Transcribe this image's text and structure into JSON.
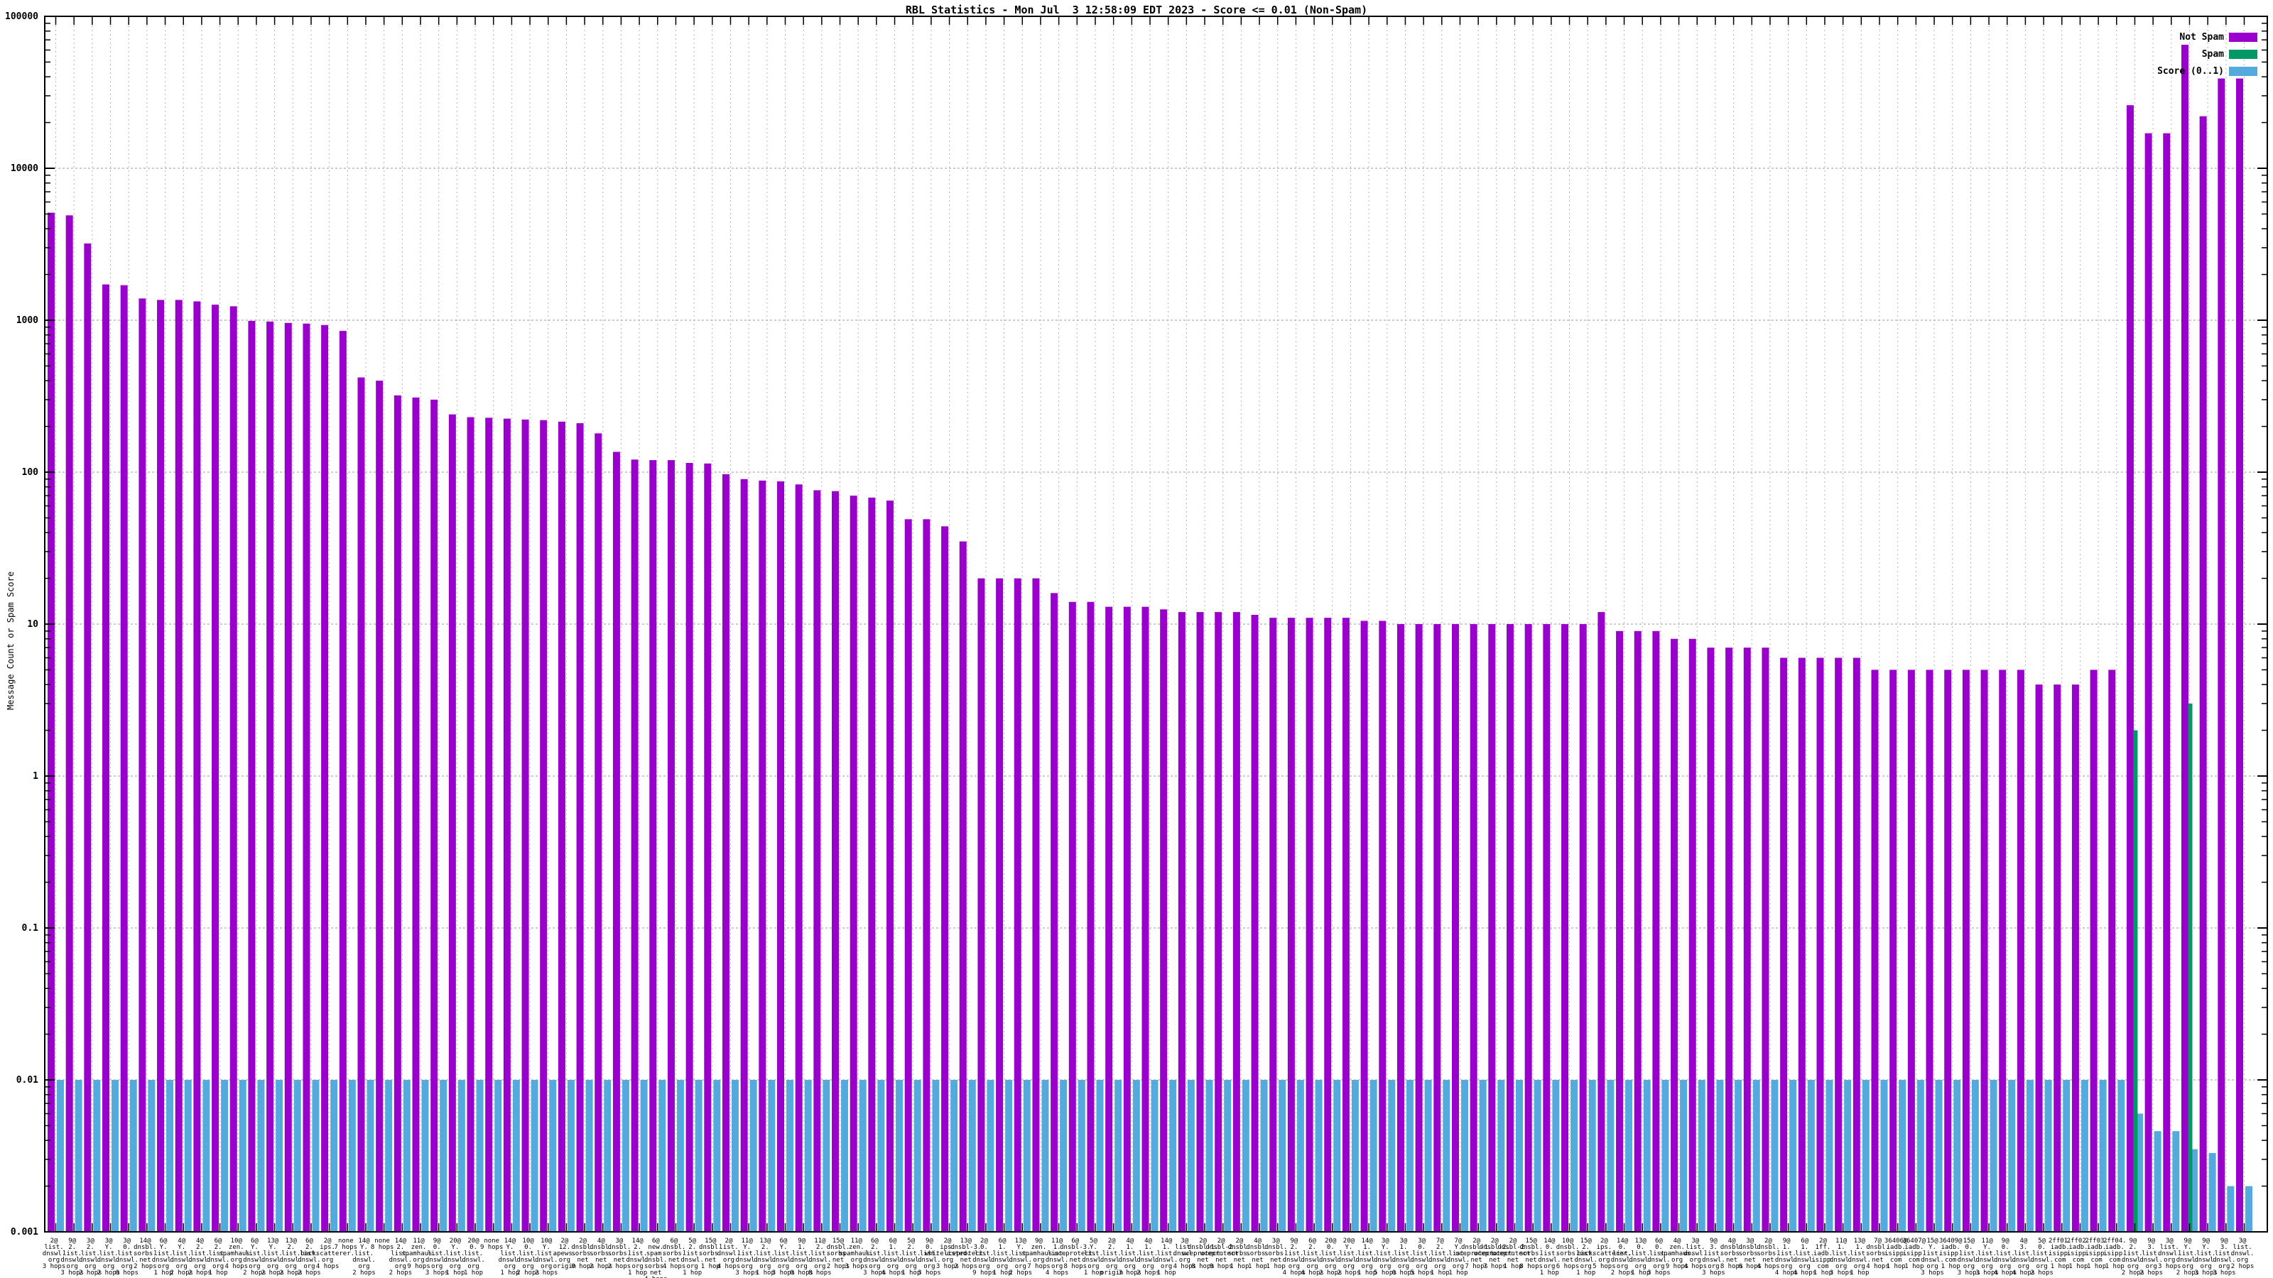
{
  "chart_data": {
    "type": "bar",
    "title": "RBL Statistics - Mon Jul  3 12:58:09 EDT 2023 - Score <= 0.01 (Non-Spam)",
    "ylabel": "Message Count or Spam Score",
    "y_scale": "log",
    "ylim": [
      0.001,
      100000
    ],
    "y_tick_labels": [
      "100000",
      "10000",
      "1000",
      "100",
      "10",
      "1",
      "0.1",
      "0.01",
      "0.001"
    ],
    "grid": true,
    "legend_position": "top-right",
    "legend": [
      {
        "label": "Not Spam",
        "color": "#9900CC"
      },
      {
        "label": "Spam",
        "color": "#009966"
      },
      {
        "label": "Score (0..1)",
        "color": "#55AADD"
      }
    ],
    "colors": {
      "hgrid": "#999999",
      "vgrid": "#b4b4b4",
      "axis": "#000000"
    },
    "score_bar_default": 0.01,
    "bars": [
      {
        "label": "2@|list.|dnswl.|org|3 hops",
        "count": 5100
      },
      {
        "label": "9@|2.|list.|dnswl.|org|3 hops",
        "count": 4900
      },
      {
        "label": "3@|2.|list.|dnswl.|org|2 hops",
        "count": 3200
      },
      {
        "label": "3@|Y.|list.|dnswl.|org|2 hops",
        "count": 1720
      },
      {
        "label": "3@|0.|list.|dnswl.|org|0 hops",
        "count": 1700
      },
      {
        "label": "14@|dnsbl.|sorbs.|net|2 hops",
        "count": 1390
      },
      {
        "label": "6@|Y.|list.|dnswl.|org|1 hop",
        "count": 1360
      },
      {
        "label": "4@|Y.|list.|dnswl.|org|2 hops",
        "count": 1360
      },
      {
        "label": "4@|2.|list.|dnswl.|org|2 hops",
        "count": 1330
      },
      {
        "label": "6@|2.|list.|dnswl.|org|1 hop",
        "count": 1265
      },
      {
        "label": "10@|zen.|spamhaus.|org|4 hops",
        "count": 1235
      },
      {
        "label": "6@|Y.|list.|dnswl.|org|2 hops",
        "count": 990
      },
      {
        "label": "13@|Y.|list.|dnswl.|org|2 hops",
        "count": 980
      },
      {
        "label": "13@|2.|list.|dnswl.|org|2 hops",
        "count": 960
      },
      {
        "label": "6@|2.|list.|dnswl.|org|2 hops",
        "count": 950
      },
      {
        "label": "2@|ips.|backscatterer.|org|4 hops",
        "count": 930
      },
      {
        "label": "none|7 hops",
        "count": 850
      },
      {
        "label": "14@|Y.|list.|dnswl.|org|2 hops",
        "count": 420
      },
      {
        "label": "none|8 hops",
        "count": 400
      },
      {
        "label": "14@|2.|list.|dnswl.|org|2 hops",
        "count": 320
      },
      {
        "label": "11@|zen.|spamhaus.|org|9 hops",
        "count": 310
      },
      {
        "label": "9@|0.|list.|dnswl.|org|3 hops",
        "count": 300
      },
      {
        "label": "20@|Y.|list.|dnswl.|org|1 hop",
        "count": 240
      },
      {
        "label": "20@|0.|list.|dnswl.|org|1 hop",
        "count": 230
      },
      {
        "label": "none|9 hops",
        "count": 228
      },
      {
        "label": "14@|Y.|list.|dnswl.|org|1 hop",
        "count": 225
      },
      {
        "label": "10@|0.|list.|dnswl.|org|2 hops",
        "count": 222
      },
      {
        "label": "10@|Y.|list.|dnswl.|org|2 hops",
        "count": 220
      },
      {
        "label": "2@|12.|apews.|org|origin",
        "count": 215
      },
      {
        "label": "2@|dnsbl.|sorbs.|net|0 hops",
        "count": 210
      },
      {
        "label": "4@|dnsbl.|sorbs.|net|2 hops",
        "count": 180
      },
      {
        "label": "3@|dnsbl.|sorbs.|net|2 hops",
        "count": 136
      },
      {
        "label": "14@|2.|list.|dnswl.|org|1 hop",
        "count": 121
      },
      {
        "label": "6@|new.|spam.|dnsbl.|sorbs.|net|4 hops",
        "count": 120
      },
      {
        "label": "6@|dnsbl.|sorbs.|net|4 hops",
        "count": 120
      },
      {
        "label": "5@|2.|list.|dnswl.|org|1 hop",
        "count": 115
      },
      {
        "label": "15@|dnsbl.|sorbs.|net|1 hop",
        "count": 114
      },
      {
        "label": "2@|list.|dnswl.|org|4 hops",
        "count": 97
      },
      {
        "label": "11@|Y.|list.|dnswl.|org|3 hops",
        "count": 90
      },
      {
        "label": "13@|2.|list.|dnswl.|org|1 hop",
        "count": 88
      },
      {
        "label": "6@|Y.|list.|dnswl.|org|3 hops",
        "count": 87
      },
      {
        "label": "9@|1.|list.|dnswl.|org|0 hops",
        "count": 83
      },
      {
        "label": "11@|2.|list.|dnswl.|org|8 hops",
        "count": 76
      },
      {
        "label": "15@|dnsbl.|sorbs.|net|2 hops",
        "count": 75
      },
      {
        "label": "11@|zen.|spamhaus.|org|3 hops",
        "count": 70
      },
      {
        "label": "6@|2.|list.|dnswl.|org|3 hops",
        "count": 68
      },
      {
        "label": "6@|1.|list.|dnswl.|org|4 hops",
        "count": 65
      },
      {
        "label": "5@|2.|list.|dnswl.|org|1 hop",
        "count": 49
      },
      {
        "label": "9@|0.|list.|dnswl.|org|3 hops",
        "count": 49
      },
      {
        "label": "2@|ips.|whitelisted.|org|3 hops",
        "count": 44
      },
      {
        "label": "13@|dnsbl-3.|uceprotect.|net|2 hops",
        "count": 35
      },
      {
        "label": "2@|0.|list.|dnswl.|org|9 hops",
        "count": 20
      },
      {
        "label": "6@|1.|list.|dnswl.|org|1 hop",
        "count": 20
      },
      {
        "label": "13@|Y.|list.|dnswl.|org|2 hops",
        "count": 20
      },
      {
        "label": "9@|zen.|spamhaus.|org|7 hops",
        "count": 20
      },
      {
        "label": "11@|1.|list.|dnswl.|org|4 hops",
        "count": 16
      },
      {
        "label": "6@|dnsbl-3.|uceprotect.|net|8 hops",
        "count": 14
      },
      {
        "label": "5@|Y.|list.|dnswl.|org|1 hop",
        "count": 14
      },
      {
        "label": "2@|2.|list.|dnswl.|org|origin",
        "count": 13
      },
      {
        "label": "4@|1.|list.|dnswl.|org|3 hops",
        "count": 13
      },
      {
        "label": "4@|1.|list.|dnswl.|org|2 hops",
        "count": 13
      },
      {
        "label": "14@|1.|list.|dnswl.|org|1 hop",
        "count": 12.5
      },
      {
        "label": "3@|list.|dnswl.|org|4 hops",
        "count": 12
      },
      {
        "label": "2@|dnsbl-1.|uceprotect.|net|8 hops",
        "count": 12
      },
      {
        "label": "2@|dnsbl-2.|uceprotect.|net|9 hops",
        "count": 12
      },
      {
        "label": "2@|dnsbl.|sorbs.|net|1 hop",
        "count": 12
      },
      {
        "label": "4@|dnsbl.|sorbs.|net|1 hop",
        "count": 11.5
      },
      {
        "label": "3@|dnsbl.|sorbs.|net|1 hop",
        "count": 11
      },
      {
        "label": "9@|2.|list.|dnswl.|org|4 hops",
        "count": 11
      },
      {
        "label": "6@|2.|list.|dnswl.|org|4 hops",
        "count": 11
      },
      {
        "label": "20@|0.|list.|dnswl.|org|2 hops",
        "count": 11
      },
      {
        "label": "20@|Y.|list.|dnswl.|org|2 hops",
        "count": 11
      },
      {
        "label": "14@|1.|list.|dnswl.|org|1 hop",
        "count": 10.5
      },
      {
        "label": "3@|Y.|list.|dnswl.|org|5 hops",
        "count": 10.5
      },
      {
        "label": "3@|1.|list.|dnswl.|org|0 hops",
        "count": 10
      },
      {
        "label": "3@|0.|list.|dnswl.|org|5 hops",
        "count": 10
      },
      {
        "label": "7@|2.|list.|dnswl.|org|1 hop",
        "count": 10
      },
      {
        "label": "7@|Y.|list.|dnswl.|org|1 hop",
        "count": 10
      },
      {
        "label": "2@|dnsbl-1.|uceprotect.|net|7 hops",
        "count": 10
      },
      {
        "label": "2@|dnsbl-2.|uceprotect.|net|7 hops",
        "count": 10
      },
      {
        "label": "2@|dnsbl-2.|uceprotect.|net|1 hop",
        "count": 10
      },
      {
        "label": "15@|dnsbl.|sorbs.|net|8 hops",
        "count": 10
      },
      {
        "label": "14@|0.|list.|dnswl.|org|1 hop",
        "count": 10
      },
      {
        "label": "10@|dnsbl.|sorbs.|net|6 hops",
        "count": 10
      },
      {
        "label": "15@|2.|list.|dnswl.|org|1 hop",
        "count": 10
      },
      {
        "label": "2@|ips.|backscatterer.|org|5 hops",
        "count": 12
      },
      {
        "label": "14@|0.|list.|dnswl.|org|2 hops",
        "count": 9
      },
      {
        "label": "13@|0.|list.|dnswl.|org|1 hop",
        "count": 9
      },
      {
        "label": "6@|0.|list.|dnswl.|org|3 hops",
        "count": 9
      },
      {
        "label": "4@|zen.|spamhaus.|org|9 hops",
        "count": 8
      },
      {
        "label": "3@|list.|dnswl.|org|4 hops",
        "count": 8
      },
      {
        "label": "9@|3.|list.|dnswl.|org|3 hops",
        "count": 7
      },
      {
        "label": "4@|dnsbl.|sorbs.|net|8 hops",
        "count": 7
      },
      {
        "label": "3@|dnsbl.|sorbs.|net|6 hops",
        "count": 7
      },
      {
        "label": "2@|dnsbl.|sorbs.|net|4 hops",
        "count": 7
      },
      {
        "label": "9@|1.|list.|dnswl.|org|4 hops",
        "count": 6
      },
      {
        "label": "6@|1.|list.|dnswl.|org|4 hops",
        "count": 6
      },
      {
        "label": "2@|1ff.|iadb.|isipp.|com|1 hop",
        "count": 6
      },
      {
        "label": "11@|1.|list.|dnswl.|org|3 hops",
        "count": 6
      },
      {
        "label": "13@|1.|list.|dnswl.|org|1 hop",
        "count": 6
      },
      {
        "label": "7@|dnsbl.|sorbs.|net|4 hops",
        "count": 5
      },
      {
        "label": "36406@|iadb.|isipp.|com|1 hop",
        "count": 5
      },
      {
        "label": "36407@|iadb.|isipp.|com|1 hop",
        "count": 5
      },
      {
        "label": "15@|Y.|list.|dnswl.|org|3 hops",
        "count": 5
      },
      {
        "label": "36409@|iadb.|isipp.|com|1 hop",
        "count": 5
      },
      {
        "label": "15@|0.|list.|dnswl.|org|3 hops",
        "count": 5
      },
      {
        "label": "11@|Y.|list.|dnswl.|org|3 hops",
        "count": 5
      },
      {
        "label": "9@|0.|list.|dnswl.|org|4 hops",
        "count": 5
      },
      {
        "label": "4@|3.|list.|dnswl.|org|4 hops",
        "count": 5
      },
      {
        "label": "5@|0.|list.|dnswl.|org|2 hops",
        "count": 4
      },
      {
        "label": "2ff01.|iadb.|isipp.|com|1 hop",
        "count": 4
      },
      {
        "label": "2ff02.|iadb.|isipp.|com|1 hop",
        "count": 4
      },
      {
        "label": "2ff03.|iadb.|isipp.|com|1 hop",
        "count": 5
      },
      {
        "label": "2ff04.|iadb.|isipp.|com|1 hop",
        "count": 5
      },
      {
        "label": "9@|2.|list.|dnswl.|org|2 hops",
        "count": 26000,
        "spam": 2,
        "score": 0.006
      },
      {
        "label": "9@|3.|list.|dnswl.|org|2 hops",
        "count": 17000,
        "score": 0.0046
      },
      {
        "label": "3@|list.|dnswl.|org|3 hops",
        "count": 17000,
        "score": 0.0046
      },
      {
        "label": "9@|Y.|list.|dnswl.|org|2 hops",
        "count": 65000,
        "spam": 3,
        "score": 0.0035
      },
      {
        "label": "9@|Y.|list.|dnswl.|org|3 hops",
        "count": 22000,
        "score": 0.0033
      },
      {
        "label": "9@|3.|list.|dnswl.|org|3 hops",
        "count": 39000,
        "score": 0.002
      },
      {
        "label": "3@|list.|dnswl.|org|2 hops",
        "count": 39000,
        "score": 0.002
      }
    ]
  }
}
